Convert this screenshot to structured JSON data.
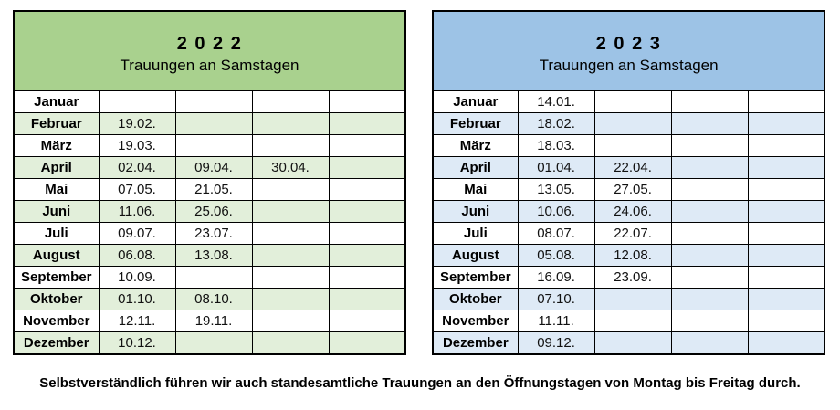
{
  "page": {
    "footer_note": "Selbstverständlich führen wir auch standesamtliche Trauungen an den Öffnungstagen von Montag bis Freitag durch."
  },
  "tables": [
    {
      "year_display": "2 0 2 2",
      "subtitle": "Trauungen an Samstagen",
      "colors": {
        "header_bg": "#a9d18e",
        "alt_row_bg": "#e2efda",
        "row_bg": "#ffffff",
        "border": "#000000"
      },
      "rows": [
        {
          "month": "Januar",
          "dates": [
            "",
            "",
            "",
            ""
          ]
        },
        {
          "month": "Februar",
          "dates": [
            "19.02.",
            "",
            "",
            ""
          ]
        },
        {
          "month": "März",
          "dates": [
            "19.03.",
            "",
            "",
            ""
          ]
        },
        {
          "month": "April",
          "dates": [
            "02.04.",
            "09.04.",
            "30.04.",
            ""
          ]
        },
        {
          "month": "Mai",
          "dates": [
            "07.05.",
            "21.05.",
            "",
            ""
          ]
        },
        {
          "month": "Juni",
          "dates": [
            "11.06.",
            "25.06.",
            "",
            ""
          ]
        },
        {
          "month": "Juli",
          "dates": [
            "09.07.",
            "23.07.",
            "",
            ""
          ]
        },
        {
          "month": "August",
          "dates": [
            "06.08.",
            "13.08.",
            "",
            ""
          ]
        },
        {
          "month": "September",
          "dates": [
            "10.09.",
            "",
            "",
            ""
          ]
        },
        {
          "month": "Oktober",
          "dates": [
            "01.10.",
            "08.10.",
            "",
            ""
          ]
        },
        {
          "month": "November",
          "dates": [
            "12.11.",
            "19.11.",
            "",
            ""
          ]
        },
        {
          "month": "Dezember",
          "dates": [
            "10.12.",
            "",
            "",
            ""
          ]
        }
      ]
    },
    {
      "year_display": "2 0 2 3",
      "subtitle": "Trauungen an Samstagen",
      "colors": {
        "header_bg": "#9dc3e6",
        "alt_row_bg": "#deeaf6",
        "row_bg": "#ffffff",
        "border": "#000000"
      },
      "rows": [
        {
          "month": "Januar",
          "dates": [
            "14.01.",
            "",
            "",
            ""
          ]
        },
        {
          "month": "Februar",
          "dates": [
            "18.02.",
            "",
            "",
            ""
          ]
        },
        {
          "month": "März",
          "dates": [
            "18.03.",
            "",
            "",
            ""
          ]
        },
        {
          "month": "April",
          "dates": [
            "01.04.",
            "22.04.",
            "",
            ""
          ]
        },
        {
          "month": "Mai",
          "dates": [
            "13.05.",
            "27.05.",
            "",
            ""
          ]
        },
        {
          "month": "Juni",
          "dates": [
            "10.06.",
            "24.06.",
            "",
            ""
          ]
        },
        {
          "month": "Juli",
          "dates": [
            "08.07.",
            "22.07.",
            "",
            ""
          ]
        },
        {
          "month": "August",
          "dates": [
            "05.08.",
            "12.08.",
            "",
            ""
          ]
        },
        {
          "month": "September",
          "dates": [
            "16.09.",
            "23.09.",
            "",
            ""
          ]
        },
        {
          "month": "Oktober",
          "dates": [
            "07.10.",
            "",
            "",
            ""
          ]
        },
        {
          "month": "November",
          "dates": [
            "11.11.",
            "",
            "",
            ""
          ]
        },
        {
          "month": "Dezember",
          "dates": [
            "09.12.",
            "",
            "",
            ""
          ]
        }
      ]
    }
  ]
}
